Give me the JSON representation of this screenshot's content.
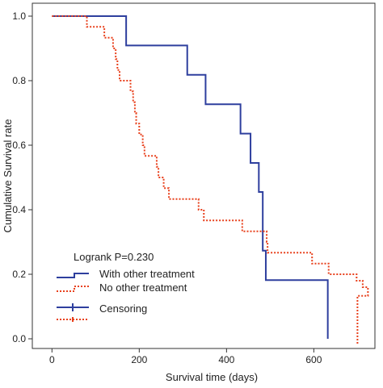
{
  "chart_data": {
    "type": "line",
    "title": "",
    "xlabel": "Survival time (days)",
    "ylabel": "Cumulative Survival rate",
    "xlim": [
      -45,
      740
    ],
    "ylim": [
      -0.03,
      1.04
    ],
    "x_ticks": [
      0,
      200,
      400,
      600
    ],
    "y_ticks": [
      0.0,
      0.2,
      0.4,
      0.6,
      0.8,
      1.0
    ],
    "y_tick_labels": [
      "0.0",
      "0.2",
      "0.4",
      "0.6",
      "0.8",
      "1.0"
    ],
    "grid": false,
    "legend_position": "bottom-left",
    "annotation": "Logrank P=0.230",
    "series": [
      {
        "name": "With other treatment",
        "color": "#2e3f9e",
        "style": "solid",
        "steps": [
          [
            0,
            1.0
          ],
          [
            170,
            0.909
          ],
          [
            310,
            0.818
          ],
          [
            352,
            0.727
          ],
          [
            432,
            0.636
          ],
          [
            455,
            0.545
          ],
          [
            474,
            0.455
          ],
          [
            483,
            0.273
          ],
          [
            490,
            0.182
          ],
          [
            632,
            0.0
          ]
        ]
      },
      {
        "name": "No other treatment",
        "color": "#e8401c",
        "style": "dashed",
        "steps": [
          [
            0,
            1.0
          ],
          [
            80,
            0.967
          ],
          [
            120,
            0.933
          ],
          [
            140,
            0.9
          ],
          [
            146,
            0.867
          ],
          [
            150,
            0.833
          ],
          [
            155,
            0.8
          ],
          [
            180,
            0.767
          ],
          [
            186,
            0.733
          ],
          [
            190,
            0.7
          ],
          [
            193,
            0.667
          ],
          [
            200,
            0.633
          ],
          [
            208,
            0.6
          ],
          [
            212,
            0.567
          ],
          [
            240,
            0.533
          ],
          [
            244,
            0.5
          ],
          [
            256,
            0.467
          ],
          [
            268,
            0.433
          ],
          [
            336,
            0.4
          ],
          [
            348,
            0.367
          ],
          [
            436,
            0.333
          ],
          [
            492,
            0.3
          ],
          [
            494,
            0.267
          ],
          [
            596,
            0.233
          ],
          [
            634,
            0.2
          ],
          [
            698,
            0.18
          ],
          [
            712,
            0.16
          ],
          [
            724,
            0.133
          ],
          [
            734,
            0.117
          ]
        ],
        "end_x": 700
      }
    ],
    "legend": {
      "entries": [
        "With other treatment",
        "No other treatment",
        "Censoring"
      ]
    }
  }
}
